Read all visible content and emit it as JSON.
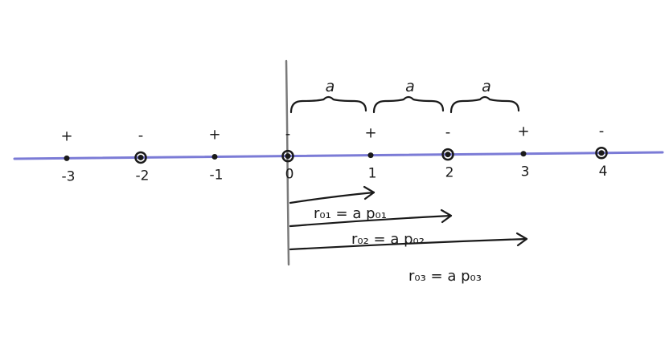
{
  "axis": {
    "color": "#7b7bd6",
    "ticks": [
      {
        "label": "-3",
        "sign": "+",
        "marker": "dot"
      },
      {
        "label": "-2",
        "sign": "-",
        "marker": "circle"
      },
      {
        "label": "-1",
        "sign": "+",
        "marker": "dot"
      },
      {
        "label": "0",
        "sign": "-",
        "marker": "circle"
      },
      {
        "label": "1",
        "sign": "+",
        "marker": "dot"
      },
      {
        "label": "2",
        "sign": "-",
        "marker": "circle"
      },
      {
        "label": "3",
        "sign": "+",
        "marker": "dot"
      },
      {
        "label": "4",
        "sign": "-",
        "marker": "circle"
      }
    ]
  },
  "spacing_labels": [
    "a",
    "a",
    "a"
  ],
  "vectors": [
    {
      "to": 1,
      "label": "r₀₁ = a p₀₁"
    },
    {
      "to": 2,
      "label": "r₀₂ = a p₀₂"
    },
    {
      "to": 3,
      "label": "r₀₃ = a p₀₃"
    }
  ],
  "ink_color": "#1a1a1a"
}
